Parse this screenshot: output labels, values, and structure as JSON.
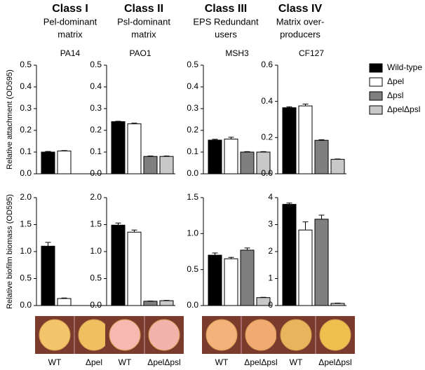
{
  "columns": [
    {
      "class": "Class I",
      "description": [
        "Pel-dominant",
        "matrix"
      ],
      "colony_labels": [
        "WT",
        "Δpel"
      ]
    },
    {
      "class": "Class II",
      "description": [
        "Psl-dominant",
        "matrix"
      ],
      "colony_labels": [
        "WT",
        "ΔpelΔpsl"
      ]
    },
    {
      "class": "Class III",
      "description": [
        "EPS Redundant",
        "users"
      ],
      "colony_labels": [
        "WT",
        "ΔpelΔpsl"
      ]
    },
    {
      "class": "Class IV",
      "description": [
        "Matrix over-",
        "producers"
      ],
      "colony_labels": [
        "WT",
        "ΔpelΔpsl"
      ]
    }
  ],
  "legend": [
    {
      "name": "Wild-type",
      "color": "#000000"
    },
    {
      "name": "Δpel",
      "color": "#ffffff"
    },
    {
      "name": "Δpsl",
      "color": "#7f7f7f"
    },
    {
      "name": "ΔpelΔpsl",
      "color": "#c8c8c8"
    }
  ],
  "chart_data": [
    {
      "type": "bar",
      "title": "PA14",
      "ylabel": "Relative attachment (OD595)",
      "ylim": [
        0,
        0.5
      ],
      "yticks": [
        {
          "value": 0,
          "label": "0.0"
        },
        0.1,
        0.2,
        0.3,
        0.4,
        0.5
      ],
      "values": [
        0.1,
        0.105,
        null,
        null
      ],
      "errors": [
        0.003,
        0.002,
        null,
        null
      ]
    },
    {
      "type": "bar",
      "title": "PAO1",
      "ylim": [
        0,
        0.5
      ],
      "yticks": [
        {
          "value": 0,
          "label": "0.0"
        },
        0.1,
        0.2,
        0.3,
        0.4,
        0.5
      ],
      "values": [
        0.24,
        0.23,
        0.08,
        0.08
      ],
      "errors": [
        0.002,
        0.003,
        0.002,
        0.002
      ]
    },
    {
      "type": "bar",
      "title": "MSH3",
      "ylim": [
        0,
        0.5
      ],
      "yticks": [
        {
          "value": 0,
          "label": "0.0"
        },
        0.1,
        0.2,
        0.3,
        0.4,
        0.5
      ],
      "values": [
        0.155,
        0.16,
        0.1,
        0.1
      ],
      "errors": [
        0.004,
        0.008,
        0.002,
        0.002
      ]
    },
    {
      "type": "bar",
      "title": "CF127",
      "ylim": [
        0,
        0.6
      ],
      "yticks": [
        {
          "value": 0,
          "label": "0.0"
        },
        0.2,
        0.4,
        0.6
      ],
      "values": [
        0.365,
        0.375,
        0.185,
        0.08
      ],
      "errors": [
        0.005,
        0.01,
        0.003,
        0.002
      ]
    },
    {
      "type": "bar",
      "ylabel": "Relative biofilm biomass (OD595)",
      "ylim": [
        0,
        2
      ],
      "yticks": [
        {
          "value": 0,
          "label": "0.0"
        },
        0.5,
        {
          "value": 1,
          "label": "1.0"
        },
        1.5,
        {
          "value": 2,
          "label": "2.0"
        }
      ],
      "values": [
        1.1,
        0.13,
        null,
        null
      ],
      "errors": [
        0.07,
        0.01,
        null,
        null
      ]
    },
    {
      "type": "bar",
      "ylim": [
        0,
        2
      ],
      "yticks": [
        {
          "value": 0,
          "label": "0.0"
        },
        0.5,
        {
          "value": 1,
          "label": "1.0"
        },
        1.5,
        {
          "value": 2,
          "label": "2.0"
        }
      ],
      "values": [
        1.49,
        1.36,
        0.08,
        0.09
      ],
      "errors": [
        0.04,
        0.04,
        0.005,
        0.005
      ]
    },
    {
      "type": "bar",
      "ylim": [
        0,
        1.5
      ],
      "yticks": [
        {
          "value": 0,
          "label": "0.0"
        },
        0.5,
        {
          "value": 1,
          "label": "1.0"
        },
        1.5
      ],
      "values": [
        0.7,
        0.65,
        0.77,
        0.11
      ],
      "errors": [
        0.03,
        0.02,
        0.03,
        0.005
      ]
    },
    {
      "type": "bar",
      "ylim": [
        0,
        4
      ],
      "yticks": [
        0,
        1,
        2,
        3,
        4
      ],
      "values": [
        3.75,
        2.8,
        3.2,
        0.08
      ],
      "errors": [
        0.05,
        0.3,
        0.15,
        0.01
      ]
    }
  ]
}
